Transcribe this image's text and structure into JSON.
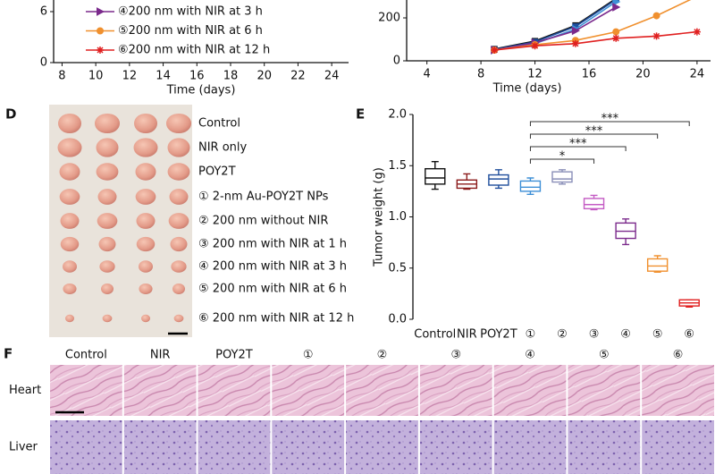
{
  "panel_labels": {
    "d": "D",
    "e": "E",
    "f": "F"
  },
  "chart_data": [
    {
      "type": "line",
      "xlabel": "Time (days)",
      "xlim": [
        7.5,
        25
      ],
      "xticks": [
        8,
        10,
        12,
        14,
        16,
        18,
        20,
        22,
        24
      ],
      "ylim": [
        0,
        7.2
      ],
      "yticks": [
        0,
        6
      ],
      "series": [
        {
          "name": "④200 nm with NIR at 3 h",
          "color": "#7b2a8c",
          "marker": "triangle"
        },
        {
          "name": "⑤200 nm with NIR at 6 h",
          "color": "#f0902e",
          "marker": "circle"
        },
        {
          "name": "⑥200 nm with NIR at 12 h",
          "color": "#e02020",
          "marker": "star"
        }
      ]
    },
    {
      "type": "line",
      "xlabel": "Time (days)",
      "xlim": [
        2.5,
        25
      ],
      "xticks": [
        4,
        8,
        12,
        16,
        20,
        24
      ],
      "ylim": [
        0,
        280
      ],
      "yticks": [
        0,
        200
      ],
      "series": [
        {
          "color": "#111111",
          "marker": "square",
          "x": [
            9,
            12,
            15,
            18
          ],
          "values": [
            55,
            92,
            165,
            290
          ]
        },
        {
          "color": "#1f4e9c",
          "marker": "square",
          "x": [
            9,
            12,
            15,
            18
          ],
          "values": [
            53,
            88,
            160,
            285
          ]
        },
        {
          "color": "#3d8fd6",
          "marker": "triangle",
          "x": [
            9,
            12,
            15,
            18
          ],
          "values": [
            50,
            80,
            148,
            275
          ]
        },
        {
          "color": "#7b2a8c",
          "marker": "triangle",
          "x": [
            9,
            12,
            15,
            18
          ],
          "values": [
            50,
            84,
            140,
            250
          ]
        },
        {
          "color": "#f0902e",
          "marker": "circle",
          "x": [
            9,
            12,
            15,
            18,
            21,
            24
          ],
          "values": [
            50,
            75,
            95,
            135,
            210,
            300
          ]
        },
        {
          "color": "#e02020",
          "marker": "star",
          "x": [
            9,
            12,
            15,
            18,
            21,
            24
          ],
          "values": [
            50,
            70,
            80,
            105,
            115,
            135
          ]
        }
      ]
    },
    {
      "type": "box",
      "ylabel": "Tumor weight (g)",
      "categories": [
        "Control",
        "NIR",
        "POY2T",
        "①",
        "②",
        "③",
        "④",
        "⑤",
        "⑥"
      ],
      "colors": [
        "#111111",
        "#8b1a1a",
        "#1f4e9c",
        "#3d8fd6",
        "#8a8fb8",
        "#c45cc4",
        "#7b2a8c",
        "#f0902e",
        "#e02020"
      ],
      "boxes": [
        {
          "min": 1.27,
          "q1": 1.32,
          "median": 1.38,
          "q3": 1.47,
          "max": 1.54
        },
        {
          "min": 1.27,
          "q1": 1.28,
          "median": 1.32,
          "q3": 1.36,
          "max": 1.42
        },
        {
          "min": 1.28,
          "q1": 1.31,
          "median": 1.37,
          "q3": 1.41,
          "max": 1.46
        },
        {
          "min": 1.22,
          "q1": 1.25,
          "median": 1.29,
          "q3": 1.35,
          "max": 1.38
        },
        {
          "min": 1.32,
          "q1": 1.34,
          "median": 1.37,
          "q3": 1.44,
          "max": 1.46
        },
        {
          "min": 1.07,
          "q1": 1.08,
          "median": 1.12,
          "q3": 1.18,
          "max": 1.21
        },
        {
          "min": 0.73,
          "q1": 0.79,
          "median": 0.86,
          "q3": 0.94,
          "max": 0.98
        },
        {
          "min": 0.46,
          "q1": 0.47,
          "median": 0.52,
          "q3": 0.59,
          "max": 0.62
        },
        {
          "min": 0.12,
          "q1": 0.13,
          "median": 0.16,
          "q3": 0.19,
          "max": 0.19
        }
      ],
      "ylim": [
        0,
        2.0
      ],
      "yticks": [
        {
          "value": 0,
          "label": "0.0"
        },
        {
          "value": 0.5,
          "label": "0.5"
        },
        {
          "value": 1,
          "label": "1.0"
        },
        {
          "value": 1.5,
          "label": "1.5"
        },
        {
          "value": 2,
          "label": "2.0"
        }
      ],
      "significance": [
        {
          "groups": [
            "①",
            "③"
          ],
          "label": "*"
        },
        {
          "groups": [
            "①",
            "④"
          ],
          "label": "***"
        },
        {
          "groups": [
            "①",
            "⑤"
          ],
          "label": "***"
        },
        {
          "groups": [
            "①",
            "⑥"
          ],
          "label": "***"
        }
      ]
    }
  ],
  "photo": {
    "labels": [
      "Control",
      "NIR only",
      "POY2T",
      "① 2-nm Au-POY2T NPs",
      "② 200 nm without NIR",
      "③ 200 nm with NIR at 1 h",
      "④ 200 nm with NIR at 3 h",
      "⑤ 200 nm with NIR at 6 h",
      "⑥ 200 nm with NIR at 12 h"
    ]
  },
  "histology": {
    "columns": [
      "Control",
      "NIR",
      "POY2T",
      "①",
      "②",
      "③",
      "④",
      "⑤",
      "⑥"
    ],
    "rows": [
      "Heart",
      "Liver"
    ]
  }
}
